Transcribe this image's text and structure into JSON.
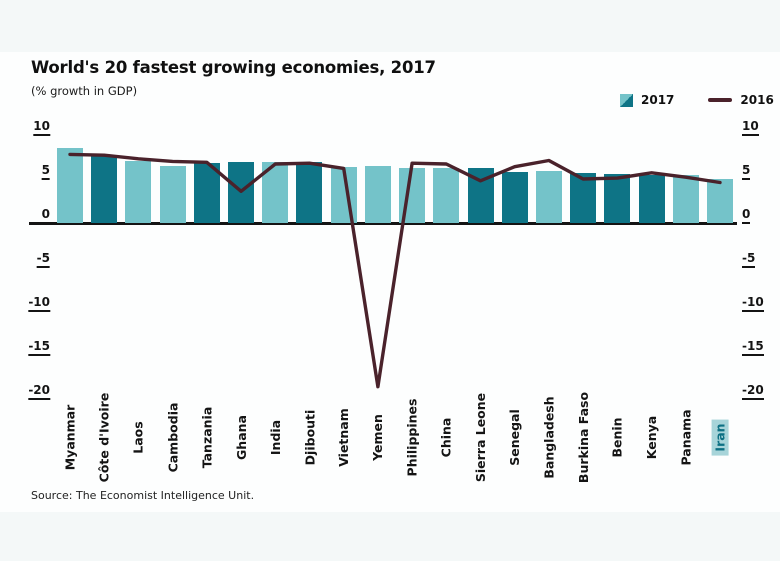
{
  "chart_data": {
    "type": "bar",
    "title": "World's 20 fastest growing economies, 2017",
    "subtitle": "(% growth in GDP)",
    "source": "Source: The Economist Intelligence Unit.",
    "categories": [
      "Myanmar",
      "Côte d'Ivoire",
      "Laos",
      "Cambodia",
      "Tanzania",
      "Ghana",
      "India",
      "Djibouti",
      "Vietnam",
      "Yemen",
      "Philippines",
      "China",
      "Sierra Leone",
      "Senegal",
      "Bangladesh",
      "Burkina Faso",
      "Benin",
      "Kenya",
      "Panama",
      "Iran"
    ],
    "series": [
      {
        "name": "2017",
        "type": "bar",
        "values": [
          8.5,
          7.6,
          7.0,
          6.5,
          6.8,
          6.9,
          6.9,
          6.9,
          6.4,
          6.5,
          6.3,
          6.2,
          6.2,
          5.8,
          5.9,
          5.7,
          5.6,
          5.4,
          5.5,
          5.0
        ]
      },
      {
        "name": "2016",
        "type": "line",
        "values": [
          7.8,
          7.7,
          7.3,
          7.0,
          6.9,
          3.6,
          6.7,
          6.8,
          6.2,
          -18.6,
          6.8,
          6.7,
          4.8,
          6.4,
          7.1,
          5.0,
          5.1,
          5.7,
          5.2,
          4.6
        ]
      }
    ],
    "bar_shades": [
      "light",
      "dark",
      "light",
      "light",
      "dark",
      "dark",
      "light",
      "dark",
      "light",
      "light",
      "light",
      "light",
      "dark",
      "dark",
      "light",
      "dark",
      "dark",
      "dark",
      "light",
      "light"
    ],
    "shade_meaning": {
      "light": "non-African economy",
      "dark": "African economy"
    },
    "highlight_category": "Iran",
    "ylim": [
      -20,
      10
    ],
    "yticks": [
      10,
      5,
      0,
      -5,
      -10,
      -15,
      -20
    ],
    "grid": false,
    "legend_position": "top-right",
    "legend": {
      "bar_label": "2017",
      "line_label": "2016"
    },
    "colors": {
      "bar_light": "#74c3c9",
      "bar_dark": "#0e7486",
      "line_2016": "#4a222b",
      "axis": "#141414",
      "highlight_bg": "#a7d4d9",
      "highlight_text": "#0d7083"
    }
  }
}
